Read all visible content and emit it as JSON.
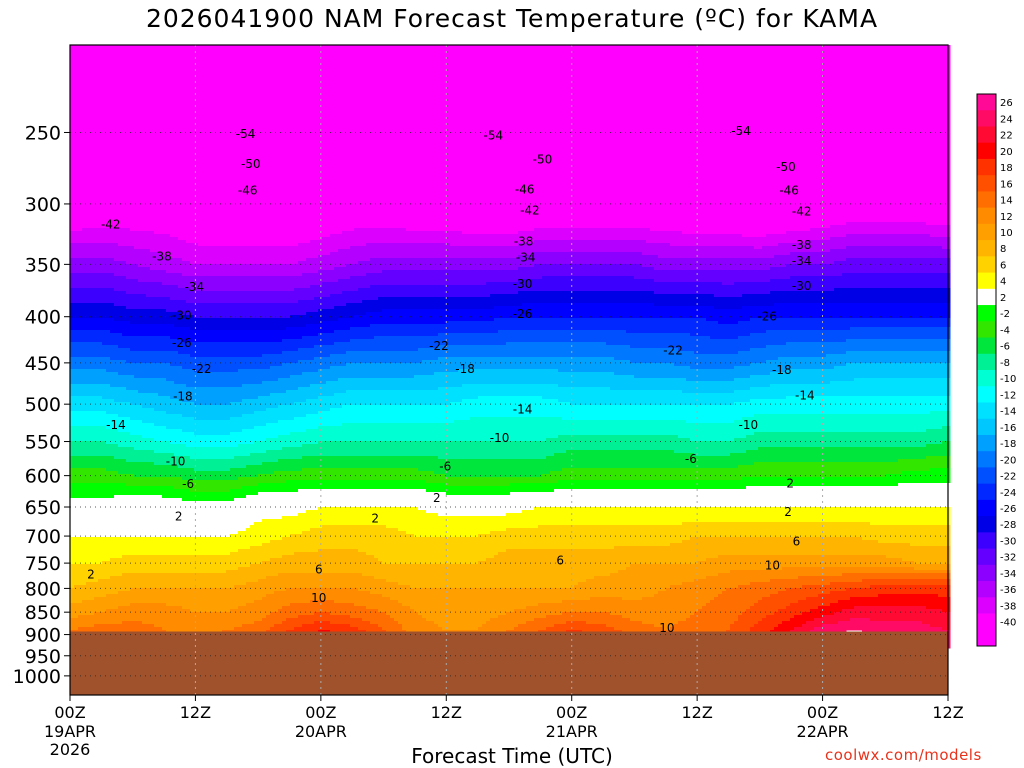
{
  "page": {
    "title": "2026041900 NAM Forecast Temperature (ºC) for KAMA",
    "xlabel": "Forecast Time (UTC)",
    "credit": "coolwx.com/models"
  },
  "chart_data": {
    "type": "heatmap",
    "title": "2026041900 NAM Forecast Temperature (ºC) for KAMA",
    "xlabel": "Forecast Time (UTC)",
    "ylabel": "",
    "x_hours": [
      0,
      3,
      6,
      9,
      12,
      15,
      18,
      21,
      24,
      27,
      30,
      33,
      36,
      39,
      42,
      45,
      48,
      51,
      54,
      57,
      60,
      63,
      66,
      69,
      72,
      75,
      78,
      81,
      84
    ],
    "xlim": [
      0,
      84
    ],
    "x_ticks": [
      {
        "hour": 0,
        "label": "00Z",
        "date": "19APR",
        "year": "2026"
      },
      {
        "hour": 12,
        "label": "12Z"
      },
      {
        "hour": 24,
        "label": "00Z",
        "date": "20APR"
      },
      {
        "hour": 36,
        "label": "12Z"
      },
      {
        "hour": 48,
        "label": "00Z",
        "date": "21APR"
      },
      {
        "hour": 60,
        "label": "12Z"
      },
      {
        "hour": 72,
        "label": "00Z",
        "date": "22APR"
      },
      {
        "hour": 84,
        "label": "12Z"
      }
    ],
    "y_ticks": [
      250,
      300,
      350,
      400,
      450,
      500,
      550,
      600,
      650,
      700,
      750,
      800,
      850,
      900,
      950,
      1000
    ],
    "ylim": [
      200,
      1050
    ],
    "y_scale": "log-pressure",
    "ground_pressure": 893,
    "grid": true,
    "colorbar": {
      "labels": [
        26,
        24,
        22,
        20,
        18,
        16,
        14,
        12,
        10,
        8,
        6,
        4,
        2,
        -2,
        -4,
        -6,
        -8,
        -10,
        -12,
        -14,
        -16,
        -18,
        -20,
        -22,
        -24,
        -26,
        -28,
        -30,
        -32,
        -34,
        -36,
        -38,
        -40
      ],
      "colors": [
        "#ff0a96",
        "#ff0a64",
        "#ff0a32",
        "#ff0000",
        "#ff3200",
        "#ff5000",
        "#ff6e00",
        "#ff8c00",
        "#ffa000",
        "#ffb400",
        "#ffd200",
        "#ffff00",
        "#ffffff",
        "#00ff00",
        "#32e600",
        "#00e63c",
        "#00f096",
        "#00ffd2",
        "#00ffff",
        "#00e1ff",
        "#00c8ff",
        "#00a0ff",
        "#0078ff",
        "#0050ff",
        "#0028ff",
        "#0000ff",
        "#0000e6",
        "#3c00ff",
        "#6400ff",
        "#8c00ff",
        "#b400ff",
        "#dc00ff",
        "#ff00ff",
        "#ff00ff"
      ],
      "position": "right"
    },
    "series": [
      {
        "pressure": 250,
        "values": [
          -53,
          -53,
          -54,
          -54,
          -55,
          -55,
          -55,
          -55,
          -54,
          -54,
          -53,
          -53,
          -54,
          -54,
          -55,
          -55,
          -54,
          -54,
          -53,
          -53,
          -54,
          -55,
          -55,
          -55,
          -54,
          -53,
          -53,
          -53,
          -53
        ]
      },
      {
        "pressure": 300,
        "values": [
          -44,
          -43,
          -43,
          -43,
          -44,
          -45,
          -45,
          -45,
          -44,
          -43,
          -43,
          -44,
          -44,
          -45,
          -45,
          -44,
          -44,
          -44,
          -44,
          -44,
          -45,
          -45,
          -46,
          -45,
          -44,
          -43,
          -43,
          -43,
          -44
        ]
      },
      {
        "pressure": 350,
        "values": [
          -35,
          -35,
          -36,
          -37,
          -38,
          -38,
          -38,
          -38,
          -37,
          -36,
          -35,
          -35,
          -35,
          -35,
          -35,
          -34,
          -34,
          -34,
          -34,
          -35,
          -35,
          -35,
          -35,
          -34,
          -34,
          -33,
          -33,
          -33,
          -33
        ]
      },
      {
        "pressure": 400,
        "values": [
          -28,
          -28,
          -29,
          -29,
          -30,
          -30,
          -30,
          -30,
          -29,
          -28,
          -27,
          -27,
          -27,
          -27,
          -26,
          -26,
          -26,
          -26,
          -26,
          -26,
          -26,
          -27,
          -26,
          -26,
          -26,
          -26,
          -26,
          -26,
          -26
        ]
      },
      {
        "pressure": 450,
        "values": [
          -21,
          -21,
          -22,
          -22,
          -23,
          -23,
          -23,
          -22,
          -21,
          -20,
          -20,
          -20,
          -19,
          -19,
          -19,
          -19,
          -19,
          -19,
          -20,
          -20,
          -21,
          -21,
          -20,
          -19,
          -19,
          -18,
          -18,
          -18,
          -18
        ]
      },
      {
        "pressure": 500,
        "values": [
          -15,
          -15,
          -16,
          -17,
          -18,
          -18,
          -17,
          -16,
          -15,
          -14,
          -14,
          -14,
          -14,
          -13,
          -13,
          -13,
          -14,
          -14,
          -14,
          -14,
          -14,
          -14,
          -13,
          -13,
          -13,
          -13,
          -13,
          -13,
          -13
        ]
      },
      {
        "pressure": 550,
        "values": [
          -10,
          -10,
          -11,
          -12,
          -13,
          -13,
          -12,
          -11,
          -10,
          -10,
          -10,
          -10,
          -10,
          -10,
          -10,
          -10,
          -9,
          -9,
          -9,
          -9,
          -10,
          -10,
          -9,
          -9,
          -9,
          -9,
          -9,
          -9,
          -8
        ]
      },
      {
        "pressure": 600,
        "values": [
          -5,
          -5,
          -6,
          -6,
          -7,
          -7,
          -6,
          -5,
          -5,
          -5,
          -5,
          -5,
          -6,
          -6,
          -6,
          -6,
          -5,
          -5,
          -5,
          -5,
          -5,
          -5,
          -4,
          -4,
          -4,
          -4,
          -4,
          -3,
          -3
        ]
      },
      {
        "pressure": 650,
        "values": [
          -1,
          -1,
          1,
          0,
          -1,
          -1,
          1,
          1,
          2,
          2,
          2,
          2,
          1,
          1,
          1,
          2,
          2,
          2,
          2,
          2,
          2,
          2,
          2,
          2,
          2,
          2,
          2,
          2,
          2
        ]
      },
      {
        "pressure": 700,
        "values": [
          2,
          2,
          2,
          2,
          2,
          2,
          3,
          4,
          5,
          5,
          5,
          4,
          4,
          4,
          5,
          5,
          5,
          5,
          5,
          5,
          6,
          6,
          6,
          6,
          6,
          6,
          5,
          5,
          5
        ]
      },
      {
        "pressure": 750,
        "values": [
          4,
          4,
          5,
          5,
          5,
          5,
          6,
          7,
          7,
          7,
          6,
          6,
          6,
          6,
          7,
          7,
          7,
          7,
          8,
          8,
          8,
          9,
          9,
          9,
          9,
          9,
          9,
          8,
          8
        ]
      },
      {
        "pressure": 800,
        "values": [
          6,
          7,
          8,
          8,
          8,
          8,
          9,
          10,
          10,
          10,
          9,
          8,
          8,
          8,
          8,
          8,
          8,
          9,
          9,
          10,
          11,
          12,
          13,
          14,
          15,
          16,
          17,
          17,
          17
        ]
      },
      {
        "pressure": 850,
        "values": [
          9,
          10,
          11,
          11,
          10,
          10,
          11,
          13,
          14,
          13,
          12,
          10,
          9,
          9,
          10,
          11,
          12,
          12,
          11,
          11,
          12,
          13,
          15,
          17,
          19,
          21,
          21,
          21,
          20
        ]
      },
      {
        "pressure": 890,
        "values": [
          12,
          13,
          13,
          12,
          11,
          12,
          13,
          16,
          18,
          17,
          14,
          11,
          10,
          10,
          12,
          14,
          16,
          15,
          13,
          12,
          13,
          14,
          17,
          20,
          23,
          24,
          23,
          23,
          22
        ]
      }
    ],
    "contour_labels": [
      {
        "x": 16.8,
        "p": 251,
        "text": "-54"
      },
      {
        "x": 40.5,
        "p": 252,
        "text": "-54"
      },
      {
        "x": 64.2,
        "p": 249,
        "text": "-54"
      },
      {
        "x": 17.3,
        "p": 271,
        "text": "-50"
      },
      {
        "x": 45.2,
        "p": 268,
        "text": "-50"
      },
      {
        "x": 68.5,
        "p": 273,
        "text": "-50"
      },
      {
        "x": 17.0,
        "p": 290,
        "text": "-46"
      },
      {
        "x": 43.5,
        "p": 289,
        "text": "-46"
      },
      {
        "x": 68.8,
        "p": 290,
        "text": "-46"
      },
      {
        "x": 3.9,
        "p": 316,
        "text": "-42"
      },
      {
        "x": 44.0,
        "p": 305,
        "text": "-42"
      },
      {
        "x": 70.0,
        "p": 306,
        "text": "-42"
      },
      {
        "x": 8.8,
        "p": 343,
        "text": "-38"
      },
      {
        "x": 43.4,
        "p": 330,
        "text": "-38"
      },
      {
        "x": 70.0,
        "p": 333,
        "text": "-38"
      },
      {
        "x": 11.9,
        "p": 371,
        "text": "-34"
      },
      {
        "x": 43.6,
        "p": 344,
        "text": "-34"
      },
      {
        "x": 70.0,
        "p": 347,
        "text": "-34"
      },
      {
        "x": 10.7,
        "p": 399,
        "text": "-30"
      },
      {
        "x": 43.3,
        "p": 368,
        "text": "-30"
      },
      {
        "x": 70.0,
        "p": 370,
        "text": "-30"
      },
      {
        "x": 10.7,
        "p": 428,
        "text": "-26"
      },
      {
        "x": 43.3,
        "p": 397,
        "text": "-26"
      },
      {
        "x": 66.7,
        "p": 400,
        "text": "-26"
      },
      {
        "x": 12.6,
        "p": 457,
        "text": "-22"
      },
      {
        "x": 35.3,
        "p": 431,
        "text": "-22"
      },
      {
        "x": 57.7,
        "p": 436,
        "text": "-22"
      },
      {
        "x": 10.8,
        "p": 490,
        "text": "-18"
      },
      {
        "x": 37.8,
        "p": 457,
        "text": "-18"
      },
      {
        "x": 68.1,
        "p": 458,
        "text": "-18"
      },
      {
        "x": 4.4,
        "p": 527,
        "text": "-14"
      },
      {
        "x": 43.3,
        "p": 507,
        "text": "-14"
      },
      {
        "x": 70.3,
        "p": 489,
        "text": "-14"
      },
      {
        "x": 10.1,
        "p": 579,
        "text": "-10"
      },
      {
        "x": 41.1,
        "p": 545,
        "text": "-10"
      },
      {
        "x": 64.9,
        "p": 527,
        "text": "-10"
      },
      {
        "x": 11.3,
        "p": 613,
        "text": "-6"
      },
      {
        "x": 35.9,
        "p": 586,
        "text": "-6"
      },
      {
        "x": 59.4,
        "p": 575,
        "text": "-6"
      },
      {
        "x": 10.4,
        "p": 666,
        "text": "2"
      },
      {
        "x": 29.2,
        "p": 669,
        "text": "2"
      },
      {
        "x": 35.1,
        "p": 635,
        "text": "2"
      },
      {
        "x": 68.9,
        "p": 612,
        "text": "2"
      },
      {
        "x": 68.7,
        "p": 658,
        "text": "2"
      },
      {
        "x": 2.0,
        "p": 772,
        "text": "2"
      },
      {
        "x": 23.8,
        "p": 762,
        "text": "6"
      },
      {
        "x": 46.9,
        "p": 745,
        "text": "6"
      },
      {
        "x": 69.5,
        "p": 710,
        "text": "6"
      },
      {
        "x": 23.8,
        "p": 820,
        "text": "10"
      },
      {
        "x": 57.1,
        "p": 885,
        "text": "10"
      },
      {
        "x": 67.2,
        "p": 755,
        "text": "10"
      }
    ]
  }
}
